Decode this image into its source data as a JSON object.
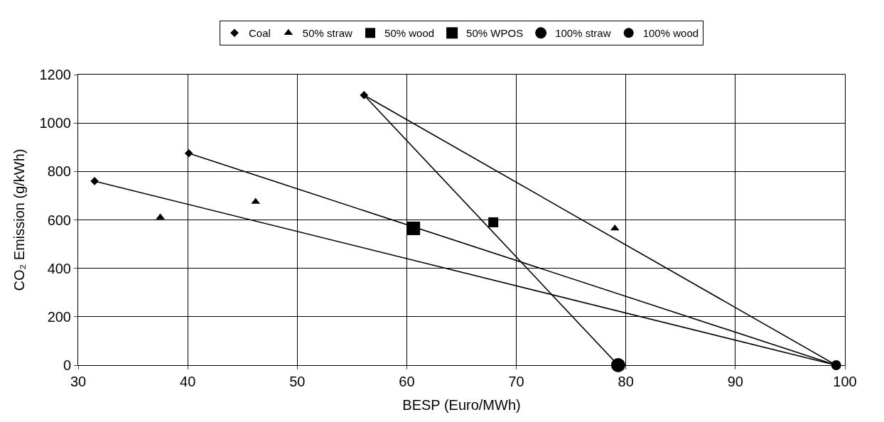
{
  "chart_data": {
    "type": "scatter",
    "xlabel": "BESP (Euro/MWh)",
    "ylabel": "CO₂ Emission (g/kWh)",
    "xlim": [
      30,
      100
    ],
    "xticks": [
      30,
      40,
      50,
      60,
      70,
      80,
      90,
      100
    ],
    "ylim": [
      0,
      1200
    ],
    "yticks": [
      0,
      200,
      400,
      600,
      800,
      1000,
      1200
    ],
    "grid": true,
    "legend": "top",
    "series": [
      {
        "name": "Coal",
        "color": "#000000",
        "marker": "diamond",
        "x": [
          31.5,
          40.1,
          56.1
        ],
        "values": [
          760,
          875,
          1115
        ]
      },
      {
        "name": "50% straw",
        "color": "#000000",
        "marker": "triangle",
        "x": [
          37.5,
          46.2,
          79.0
        ],
        "values": [
          610,
          675,
          565
        ]
      },
      {
        "name": "50% wood",
        "color": "#000000",
        "marker": "square",
        "x": [
          67.9
        ],
        "values": [
          590
        ]
      },
      {
        "name": "50% WPOS",
        "color": "#000000",
        "marker": "square",
        "x": [
          60.6
        ],
        "values": [
          565
        ]
      },
      {
        "name": "100% straw",
        "color": "#000000",
        "marker": "circle",
        "x": [
          79.3
        ],
        "values": [
          0
        ]
      },
      {
        "name": "100% wood",
        "color": "#000000",
        "marker": "circle",
        "x": [
          99.2
        ],
        "values": [
          0
        ]
      },
      {
        "type": "line",
        "color": "#000000",
        "marker": "none",
        "x": [
          31.5,
          99.2
        ],
        "values": [
          760,
          0
        ]
      },
      {
        "type": "line",
        "color": "#000000",
        "marker": "none",
        "x": [
          40.1,
          99.2
        ],
        "values": [
          875,
          0
        ]
      },
      {
        "type": "line",
        "color": "#000000",
        "marker": "none",
        "x": [
          56.1,
          79.3
        ],
        "values": [
          1115,
          0
        ]
      },
      {
        "type": "line",
        "color": "#000000",
        "marker": "none",
        "x": [
          56.1,
          99.2
        ],
        "values": [
          1115,
          0
        ]
      }
    ]
  }
}
